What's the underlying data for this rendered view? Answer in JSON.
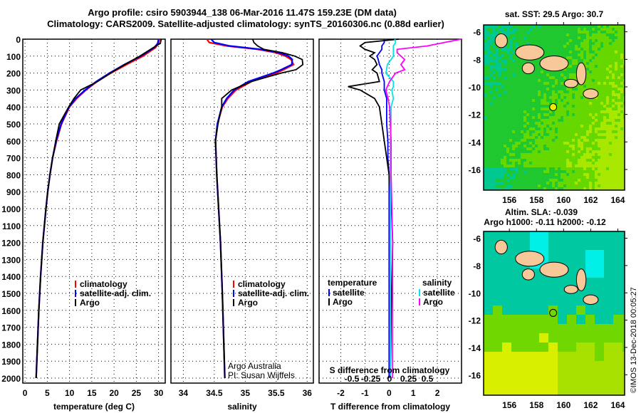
{
  "title_line1": "Argo profile: csiro 5903944_138 06-Mar-2016 11.47S 159.23E (DM data)",
  "title_line2": "Climatology: CARS2009. Satellite-adjusted climatology: synTS_20160306.nc (0.88d earlier)",
  "depth_ticks": [
    0,
    100,
    200,
    300,
    400,
    500,
    600,
    700,
    800,
    900,
    1000,
    1100,
    1200,
    1300,
    1400,
    1500,
    1600,
    1700,
    1800,
    1900,
    2000
  ],
  "credit": [
    "Argo Australia",
    "PI: Susan Wijffels"
  ],
  "footer": "©IMOS 13-Dec-2018 00:05:27",
  "colors": {
    "climatology": "#ff0000",
    "satellite": "#0000ff",
    "argo": "#000000",
    "sal_sat": "#00e5ee",
    "sal_argo": "#ff00ff"
  },
  "chart_data": [
    {
      "type": "line",
      "xlabel": "temperature (deg C)",
      "ylabel": "depth",
      "xlim": [
        -0.5,
        31.5
      ],
      "ylim": [
        2050,
        0
      ],
      "xticks": [
        0,
        5,
        10,
        15,
        20,
        25,
        30
      ],
      "legend": [
        "climatology",
        "satellite-adj. clim.",
        "Argo"
      ],
      "depth": [
        0,
        25,
        50,
        100,
        150,
        200,
        250,
        300,
        350,
        400,
        500,
        600,
        700,
        800,
        900,
        1000,
        1200,
        1400,
        1600,
        1800,
        2000
      ],
      "series": [
        {
          "name": "climatology",
          "values": [
            30.2,
            30.0,
            29.3,
            26.5,
            22.8,
            19.3,
            16.2,
            13.7,
            11.6,
            10.0,
            8.2,
            7.1,
            6.2,
            5.6,
            5.1,
            4.7,
            4.0,
            3.5,
            3.1,
            2.8,
            2.5
          ]
        },
        {
          "name": "satellite-adj. clim.",
          "values": [
            30.0,
            29.8,
            29.0,
            26.0,
            22.3,
            19.0,
            16.0,
            13.5,
            11.4,
            9.9,
            8.1,
            7.0,
            6.2,
            5.6,
            5.1,
            4.7,
            4.0,
            3.5,
            3.1,
            2.8,
            2.5
          ]
        },
        {
          "name": "Argo",
          "values": [
            30.6,
            30.4,
            28.8,
            25.8,
            22.4,
            19.2,
            16.3,
            12.5,
            11.0,
            9.8,
            7.7,
            6.9,
            6.2,
            5.6,
            5.1,
            4.7,
            4.0,
            3.5,
            3.1,
            2.8,
            2.5
          ]
        }
      ]
    },
    {
      "type": "line",
      "xlabel": "salinity",
      "xlim": [
        33.8,
        36.1
      ],
      "ylim": [
        2050,
        0
      ],
      "xticks": [
        34,
        34.5,
        35,
        35.5,
        36
      ],
      "legend": [
        "climatology",
        "satellite-adj. clim.",
        "Argo"
      ],
      "depth": [
        0,
        20,
        40,
        60,
        80,
        100,
        120,
        150,
        180,
        200,
        250,
        300,
        350,
        400,
        500,
        600,
        800,
        1000,
        1200,
        1500,
        2000
      ],
      "series": [
        {
          "name": "climatology",
          "values": [
            34.38,
            34.42,
            34.7,
            35.2,
            35.5,
            35.65,
            35.74,
            35.78,
            35.62,
            35.5,
            35.1,
            34.85,
            34.72,
            34.63,
            34.55,
            34.52,
            34.54,
            34.57,
            34.6,
            34.63,
            34.67
          ]
        },
        {
          "name": "satellite-adj. clim.",
          "values": [
            34.45,
            34.5,
            34.75,
            35.25,
            35.55,
            35.7,
            35.76,
            35.75,
            35.58,
            35.45,
            35.05,
            34.82,
            34.7,
            34.62,
            34.55,
            34.52,
            34.54,
            34.57,
            34.6,
            34.63,
            34.67
          ]
        },
        {
          "name": "Argo",
          "values": [
            35.12,
            35.14,
            35.2,
            35.3,
            35.6,
            35.8,
            35.92,
            35.93,
            35.82,
            35.58,
            35.1,
            34.78,
            34.62,
            34.62,
            34.56,
            34.52,
            34.54,
            34.57,
            34.6,
            34.63,
            34.67
          ]
        }
      ]
    },
    {
      "type": "line",
      "xlabel": "T difference from climatology",
      "xlabel2": "S difference from climatology",
      "xlim": [
        -2.9,
        3.0
      ],
      "xticks": [
        -2,
        -1,
        0,
        1,
        2
      ],
      "x2ticks": [
        -0.5,
        -0.25,
        0,
        0.25,
        0.5
      ],
      "ylim": [
        2050,
        0
      ],
      "legend_temperature": {
        "title": "temperature",
        "items": [
          "satellite",
          "Argo"
        ]
      },
      "legend_salinity": {
        "title": "salinity",
        "items": [
          "satellite",
          "Argo"
        ]
      },
      "depth": [
        0,
        20,
        40,
        60,
        80,
        100,
        120,
        150,
        180,
        200,
        250,
        280,
        300,
        350,
        400,
        500,
        600,
        700,
        800,
        1000,
        1200,
        1500,
        2000
      ],
      "series": [
        {
          "name": "T satellite",
          "values": [
            -0.2,
            -0.2,
            -0.3,
            -0.3,
            -0.4,
            -0.5,
            -0.45,
            -0.4,
            -0.3,
            -0.3,
            -0.2,
            -0.2,
            -0.2,
            -0.1,
            -0.1,
            -0.1,
            -0.05,
            -0.05,
            0,
            0,
            0,
            0,
            0
          ]
        },
        {
          "name": "T Argo",
          "values": [
            0.4,
            -1.0,
            -1.2,
            -1.0,
            -0.6,
            -0.8,
            -0.6,
            -0.5,
            -0.7,
            -0.5,
            -0.4,
            -1.7,
            -1.2,
            -0.6,
            -0.4,
            -0.3,
            -0.2,
            -0.1,
            0,
            0.1,
            0.15,
            0.1,
            0.05
          ]
        },
        {
          "name": "S satellite",
          "values": [
            0.07,
            0.08,
            0.05,
            0.05,
            0.05,
            0.05,
            0.02,
            -0.03,
            -0.04,
            -0.05,
            0.05,
            0.05,
            0.03,
            0.05,
            0.02,
            0.02,
            0.01,
            0.01,
            0.01,
            0.01,
            0.01,
            0.01,
            0.01
          ]
        },
        {
          "name": "S Argo",
          "values": [
            0.95,
            0.72,
            0.5,
            0.1,
            0.1,
            0.15,
            0.2,
            0.15,
            0.2,
            0.08,
            0.0,
            -0.03,
            -0.05,
            -0.02,
            0.0,
            0.01,
            0.02,
            0.02,
            0.02,
            0.03,
            0.04,
            0.04,
            0.04
          ]
        }
      ]
    },
    {
      "type": "heatmap",
      "title": "sat. SST: 29.5 Argo: 30.7",
      "xlim": [
        154.1,
        164.5
      ],
      "ylim": [
        -17.5,
        -5.5
      ],
      "xticks": [
        156,
        158,
        160,
        162,
        164
      ],
      "yticks": [
        -6,
        -8,
        -10,
        -12,
        -14,
        -16
      ],
      "argo_position": [
        159.23,
        -11.47
      ]
    },
    {
      "type": "heatmap",
      "title": "Altim. SLA: -0.039",
      "subtitle": "Argo h1000: -0.11 h2000: -0.12",
      "xlim": [
        154.1,
        164.5
      ],
      "ylim": [
        -17.5,
        -5.5
      ],
      "xticks": [
        156,
        158,
        160,
        162,
        164
      ],
      "yticks": [
        -6,
        -8,
        -10,
        -12,
        -14,
        -16
      ],
      "argo_position": [
        159.23,
        -11.47
      ]
    }
  ]
}
